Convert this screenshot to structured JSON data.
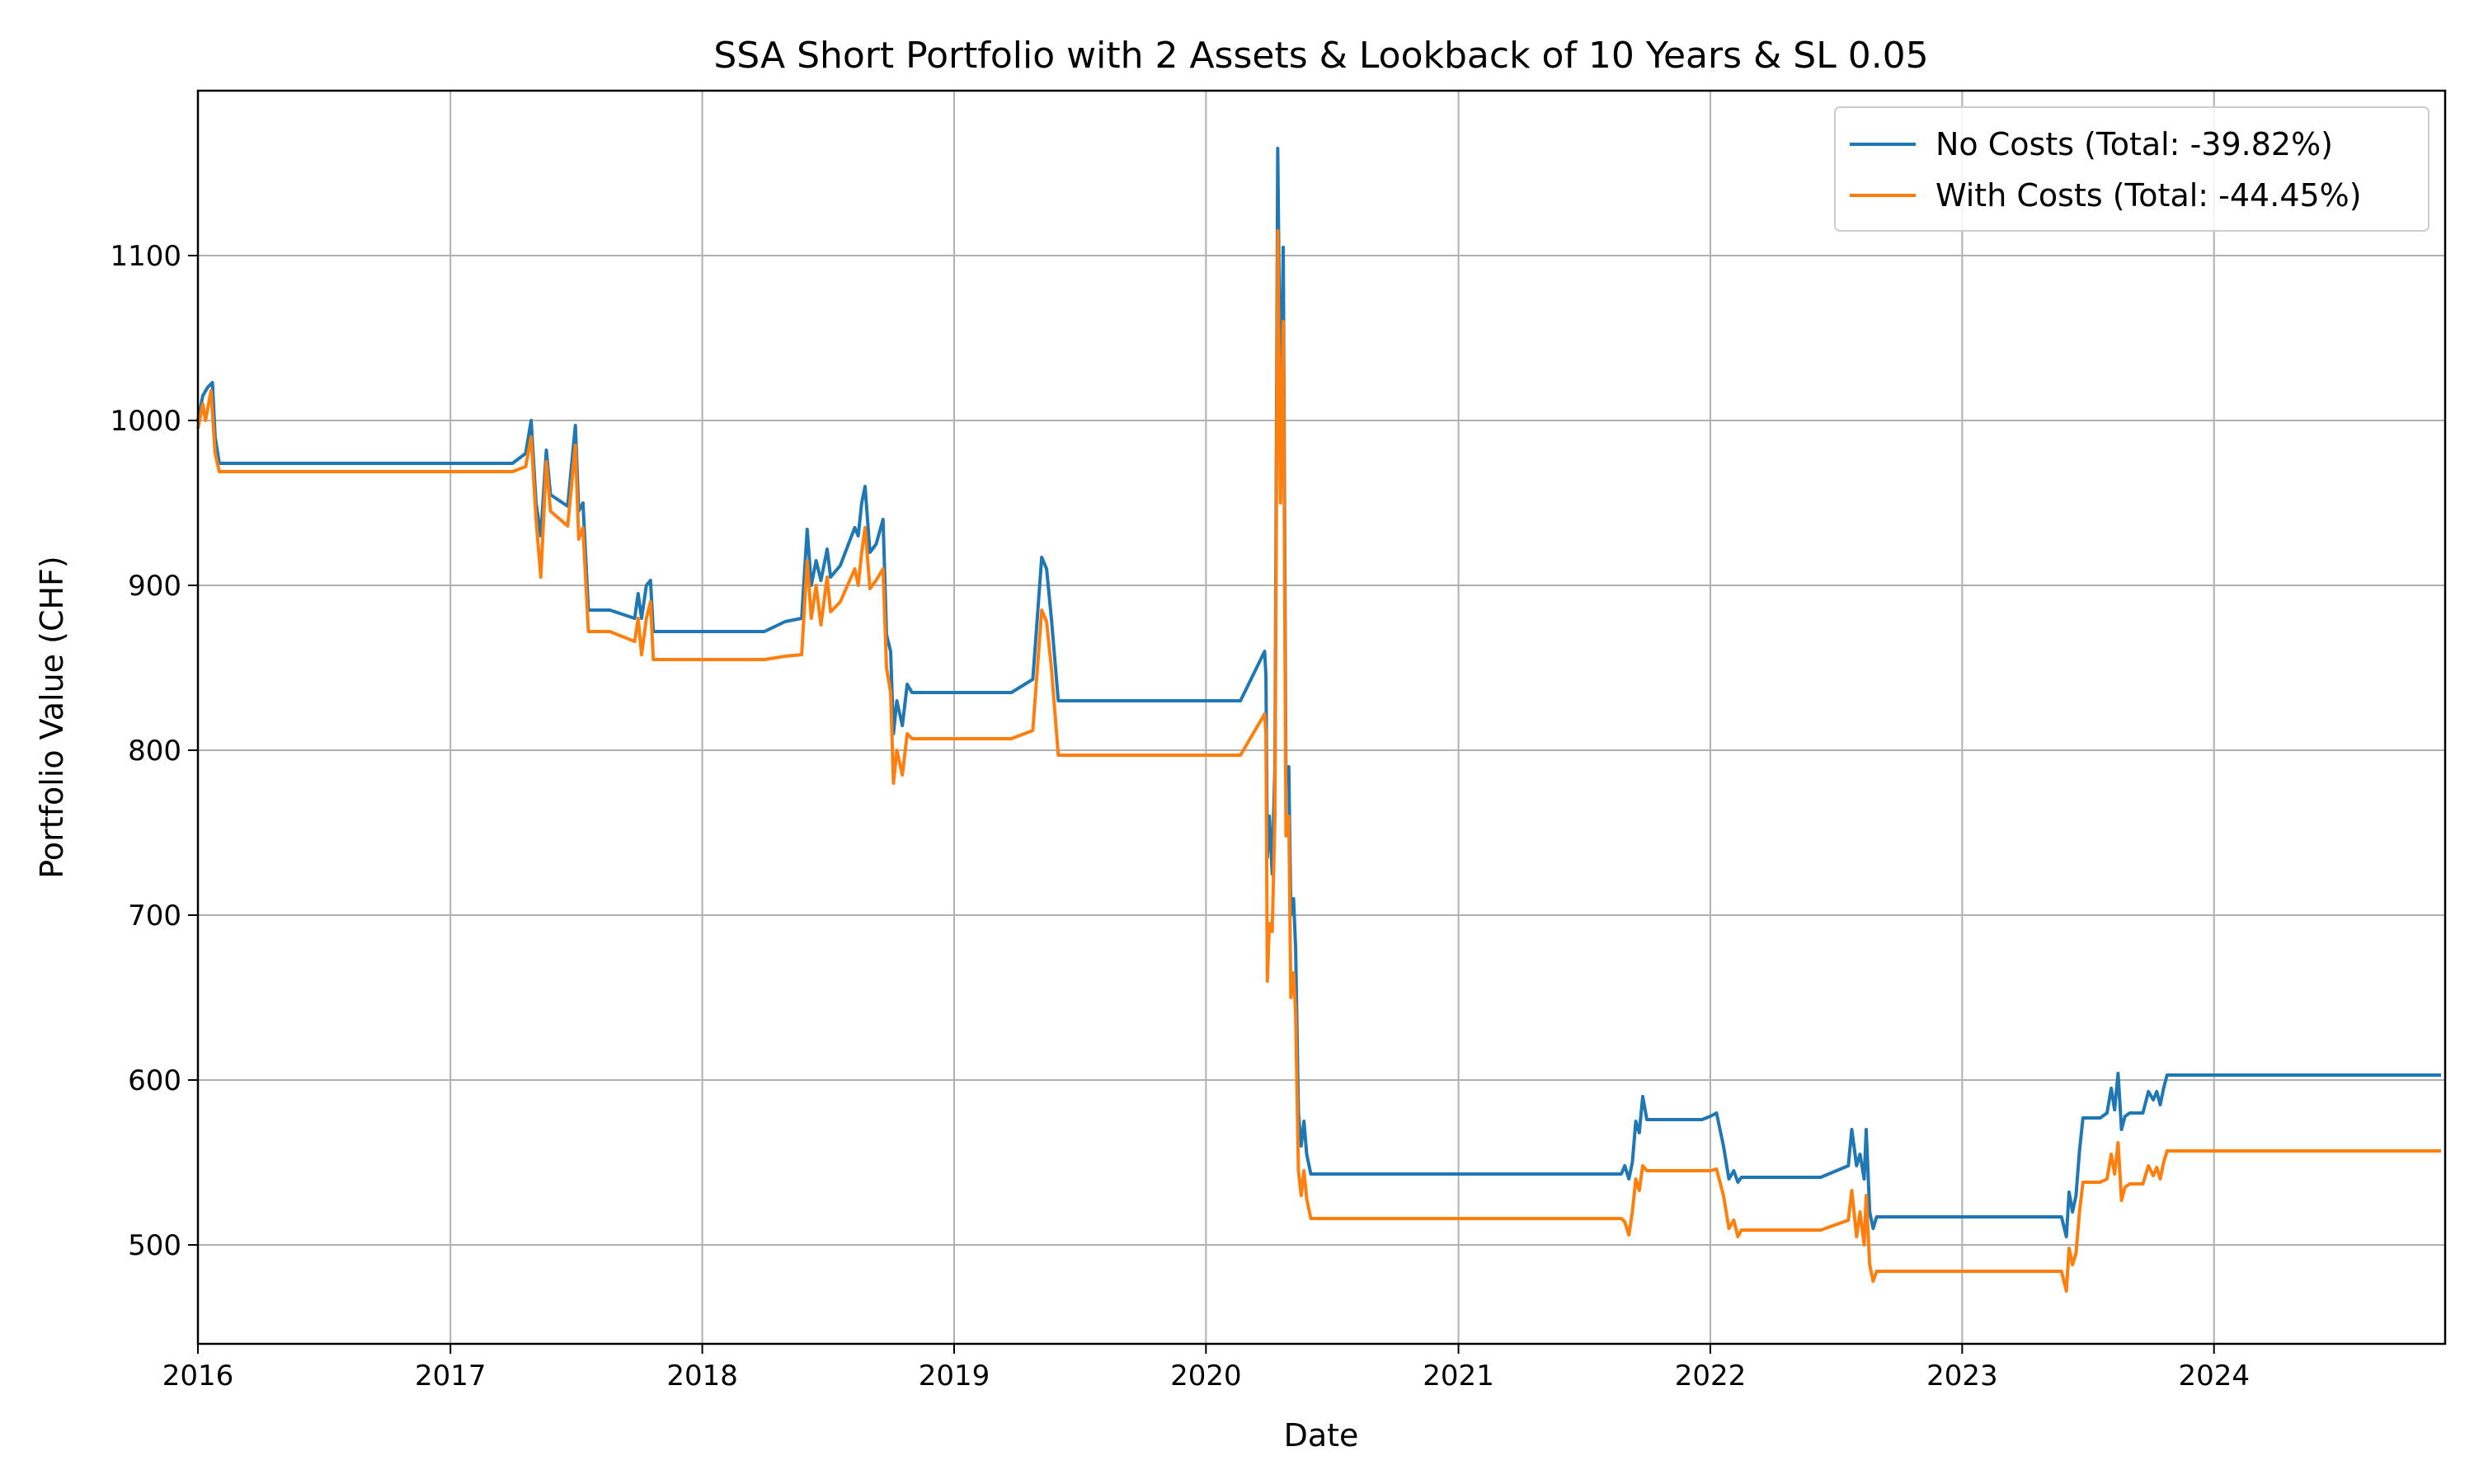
{
  "chart_data": {
    "type": "line",
    "title": "SSA Short Portfolio with 2 Assets & Lookback of 10 Years & SL 0.05",
    "xlabel": "Date",
    "ylabel": "Portfolio Value (CHF)",
    "xlim": [
      "2016-01-01",
      "2024-12-01"
    ],
    "ylim": [
      440,
      1200
    ],
    "x_ticks": [
      "2016",
      "2017",
      "2018",
      "2019",
      "2020",
      "2021",
      "2022",
      "2023",
      "2024"
    ],
    "y_ticks": [
      500,
      600,
      700,
      800,
      900,
      1000,
      1100
    ],
    "grid": true,
    "legend_position": "top-right",
    "series": [
      {
        "name": "No Costs (Total: -39.82%)",
        "color": "#1f77b4",
        "points": [
          [
            "2016-01-01",
            1000
          ],
          [
            "2016-01-08",
            1015
          ],
          [
            "2016-01-15",
            1020
          ],
          [
            "2016-01-22",
            1023
          ],
          [
            "2016-01-26",
            990
          ],
          [
            "2016-02-01",
            974
          ],
          [
            "2017-04-01",
            974
          ],
          [
            "2017-04-20",
            980
          ],
          [
            "2017-04-28",
            1000
          ],
          [
            "2017-05-05",
            950
          ],
          [
            "2017-05-12",
            930
          ],
          [
            "2017-05-20",
            982
          ],
          [
            "2017-05-26",
            955
          ],
          [
            "2017-06-20",
            948
          ],
          [
            "2017-07-01",
            997
          ],
          [
            "2017-07-06",
            945
          ],
          [
            "2017-07-12",
            950
          ],
          [
            "2017-07-20",
            885
          ],
          [
            "2017-08-20",
            885
          ],
          [
            "2017-09-25",
            880
          ],
          [
            "2017-09-30",
            895
          ],
          [
            "2017-10-05",
            880
          ],
          [
            "2017-10-12",
            900
          ],
          [
            "2017-10-18",
            903
          ],
          [
            "2017-10-22",
            872
          ],
          [
            "2018-04-01",
            872
          ],
          [
            "2018-05-01",
            878
          ],
          [
            "2018-05-25",
            880
          ],
          [
            "2018-06-02",
            934
          ],
          [
            "2018-06-08",
            900
          ],
          [
            "2018-06-15",
            915
          ],
          [
            "2018-06-22",
            903
          ],
          [
            "2018-07-01",
            922
          ],
          [
            "2018-07-06",
            905
          ],
          [
            "2018-07-20",
            912
          ],
          [
            "2018-08-10",
            935
          ],
          [
            "2018-08-15",
            930
          ],
          [
            "2018-08-20",
            950
          ],
          [
            "2018-08-25",
            960
          ],
          [
            "2018-09-01",
            920
          ],
          [
            "2018-09-10",
            925
          ],
          [
            "2018-09-20",
            940
          ],
          [
            "2018-09-25",
            870
          ],
          [
            "2018-10-01",
            860
          ],
          [
            "2018-10-05",
            810
          ],
          [
            "2018-10-10",
            830
          ],
          [
            "2018-10-18",
            815
          ],
          [
            "2018-10-25",
            840
          ],
          [
            "2018-11-01",
            835
          ],
          [
            "2019-03-25",
            835
          ],
          [
            "2019-04-25",
            843
          ],
          [
            "2019-05-08",
            917
          ],
          [
            "2019-05-15",
            910
          ],
          [
            "2019-05-22",
            880
          ],
          [
            "2019-06-01",
            830
          ],
          [
            "2020-02-20",
            830
          ],
          [
            "2020-03-26",
            860
          ],
          [
            "2020-03-28",
            845
          ],
          [
            "2020-03-30",
            735
          ],
          [
            "2020-04-02",
            760
          ],
          [
            "2020-04-06",
            725
          ],
          [
            "2020-04-10",
            790
          ],
          [
            "2020-04-14",
            1165
          ],
          [
            "2020-04-18",
            1000
          ],
          [
            "2020-04-22",
            1105
          ],
          [
            "2020-04-26",
            780
          ],
          [
            "2020-04-30",
            790
          ],
          [
            "2020-05-03",
            700
          ],
          [
            "2020-05-07",
            710
          ],
          [
            "2020-05-10",
            680
          ],
          [
            "2020-05-14",
            580
          ],
          [
            "2020-05-18",
            560
          ],
          [
            "2020-05-22",
            575
          ],
          [
            "2020-05-26",
            555
          ],
          [
            "2020-06-01",
            543
          ],
          [
            "2021-08-25",
            543
          ],
          [
            "2021-08-30",
            548
          ],
          [
            "2021-09-05",
            540
          ],
          [
            "2021-09-10",
            550
          ],
          [
            "2021-09-15",
            575
          ],
          [
            "2021-09-20",
            568
          ],
          [
            "2021-09-25",
            590
          ],
          [
            "2021-10-01",
            576
          ],
          [
            "2021-12-20",
            576
          ],
          [
            "2022-01-01",
            578
          ],
          [
            "2022-01-10",
            580
          ],
          [
            "2022-01-20",
            560
          ],
          [
            "2022-01-28",
            540
          ],
          [
            "2022-02-04",
            545
          ],
          [
            "2022-02-10",
            538
          ],
          [
            "2022-02-15",
            541
          ],
          [
            "2022-06-10",
            541
          ],
          [
            "2022-07-20",
            548
          ],
          [
            "2022-07-25",
            570
          ],
          [
            "2022-08-01",
            548
          ],
          [
            "2022-08-06",
            555
          ],
          [
            "2022-08-12",
            540
          ],
          [
            "2022-08-15",
            570
          ],
          [
            "2022-08-20",
            520
          ],
          [
            "2022-08-25",
            510
          ],
          [
            "2022-08-30",
            517
          ],
          [
            "2023-05-25",
            517
          ],
          [
            "2023-06-01",
            505
          ],
          [
            "2023-06-05",
            532
          ],
          [
            "2023-06-10",
            520
          ],
          [
            "2023-06-15",
            530
          ],
          [
            "2023-06-20",
            557
          ],
          [
            "2023-06-25",
            577
          ],
          [
            "2023-07-20",
            577
          ],
          [
            "2023-07-30",
            580
          ],
          [
            "2023-08-05",
            595
          ],
          [
            "2023-08-10",
            582
          ],
          [
            "2023-08-15",
            604
          ],
          [
            "2023-08-20",
            570
          ],
          [
            "2023-08-25",
            578
          ],
          [
            "2023-09-01",
            580
          ],
          [
            "2023-09-20",
            580
          ],
          [
            "2023-09-28",
            593
          ],
          [
            "2023-10-05",
            588
          ],
          [
            "2023-10-10",
            593
          ],
          [
            "2023-10-15",
            585
          ],
          [
            "2023-10-20",
            595
          ],
          [
            "2023-10-25",
            603
          ],
          [
            "2024-11-25",
            603
          ]
        ]
      },
      {
        "name": "With Costs (Total: -44.45%)",
        "color": "#ff7f0e",
        "points": [
          [
            "2016-01-01",
            995
          ],
          [
            "2016-01-08",
            1010
          ],
          [
            "2016-01-12",
            1000
          ],
          [
            "2016-01-20",
            1018
          ],
          [
            "2016-01-26",
            980
          ],
          [
            "2016-02-01",
            969
          ],
          [
            "2017-04-01",
            969
          ],
          [
            "2017-04-20",
            972
          ],
          [
            "2017-04-28",
            990
          ],
          [
            "2017-05-05",
            940
          ],
          [
            "2017-05-12",
            905
          ],
          [
            "2017-05-20",
            975
          ],
          [
            "2017-05-26",
            945
          ],
          [
            "2017-06-20",
            936
          ],
          [
            "2017-07-01",
            985
          ],
          [
            "2017-07-06",
            928
          ],
          [
            "2017-07-12",
            935
          ],
          [
            "2017-07-20",
            872
          ],
          [
            "2017-08-20",
            872
          ],
          [
            "2017-09-25",
            866
          ],
          [
            "2017-09-30",
            880
          ],
          [
            "2017-10-05",
            858
          ],
          [
            "2017-10-12",
            880
          ],
          [
            "2017-10-18",
            890
          ],
          [
            "2017-10-22",
            855
          ],
          [
            "2018-04-01",
            855
          ],
          [
            "2018-05-01",
            857
          ],
          [
            "2018-05-25",
            858
          ],
          [
            "2018-06-02",
            915
          ],
          [
            "2018-06-08",
            880
          ],
          [
            "2018-06-15",
            900
          ],
          [
            "2018-06-22",
            876
          ],
          [
            "2018-07-01",
            905
          ],
          [
            "2018-07-06",
            884
          ],
          [
            "2018-07-20",
            890
          ],
          [
            "2018-08-10",
            910
          ],
          [
            "2018-08-15",
            900
          ],
          [
            "2018-08-20",
            920
          ],
          [
            "2018-08-25",
            935
          ],
          [
            "2018-09-01",
            898
          ],
          [
            "2018-09-10",
            903
          ],
          [
            "2018-09-20",
            910
          ],
          [
            "2018-09-25",
            850
          ],
          [
            "2018-10-01",
            835
          ],
          [
            "2018-10-05",
            780
          ],
          [
            "2018-10-10",
            800
          ],
          [
            "2018-10-18",
            785
          ],
          [
            "2018-10-25",
            810
          ],
          [
            "2018-11-01",
            807
          ],
          [
            "2019-03-25",
            807
          ],
          [
            "2019-04-25",
            812
          ],
          [
            "2019-05-08",
            885
          ],
          [
            "2019-05-15",
            878
          ],
          [
            "2019-05-22",
            850
          ],
          [
            "2019-06-01",
            797
          ],
          [
            "2020-02-20",
            797
          ],
          [
            "2020-03-26",
            822
          ],
          [
            "2020-03-28",
            810
          ],
          [
            "2020-03-30",
            660
          ],
          [
            "2020-04-02",
            695
          ],
          [
            "2020-04-06",
            690
          ],
          [
            "2020-04-10",
            760
          ],
          [
            "2020-04-14",
            1115
          ],
          [
            "2020-04-18",
            950
          ],
          [
            "2020-04-22",
            1060
          ],
          [
            "2020-04-26",
            748
          ],
          [
            "2020-04-30",
            760
          ],
          [
            "2020-05-03",
            650
          ],
          [
            "2020-05-07",
            665
          ],
          [
            "2020-05-10",
            640
          ],
          [
            "2020-05-14",
            545
          ],
          [
            "2020-05-18",
            530
          ],
          [
            "2020-05-22",
            545
          ],
          [
            "2020-05-26",
            528
          ],
          [
            "2020-06-01",
            516
          ],
          [
            "2021-08-25",
            516
          ],
          [
            "2021-08-30",
            514
          ],
          [
            "2021-09-05",
            506
          ],
          [
            "2021-09-10",
            520
          ],
          [
            "2021-09-15",
            540
          ],
          [
            "2021-09-20",
            533
          ],
          [
            "2021-09-25",
            548
          ],
          [
            "2021-10-01",
            545
          ],
          [
            "2021-12-20",
            545
          ],
          [
            "2022-01-01",
            545
          ],
          [
            "2022-01-10",
            546
          ],
          [
            "2022-01-20",
            530
          ],
          [
            "2022-01-28",
            510
          ],
          [
            "2022-02-04",
            515
          ],
          [
            "2022-02-10",
            505
          ],
          [
            "2022-02-15",
            509
          ],
          [
            "2022-06-10",
            509
          ],
          [
            "2022-07-20",
            515
          ],
          [
            "2022-07-25",
            533
          ],
          [
            "2022-08-01",
            505
          ],
          [
            "2022-08-06",
            520
          ],
          [
            "2022-08-12",
            500
          ],
          [
            "2022-08-15",
            530
          ],
          [
            "2022-08-20",
            488
          ],
          [
            "2022-08-25",
            478
          ],
          [
            "2022-08-30",
            484
          ],
          [
            "2023-05-25",
            484
          ],
          [
            "2023-06-01",
            472
          ],
          [
            "2023-06-05",
            498
          ],
          [
            "2023-06-10",
            488
          ],
          [
            "2023-06-15",
            495
          ],
          [
            "2023-06-20",
            520
          ],
          [
            "2023-06-25",
            538
          ],
          [
            "2023-07-20",
            538
          ],
          [
            "2023-07-30",
            540
          ],
          [
            "2023-08-05",
            555
          ],
          [
            "2023-08-10",
            543
          ],
          [
            "2023-08-15",
            562
          ],
          [
            "2023-08-20",
            527
          ],
          [
            "2023-08-25",
            535
          ],
          [
            "2023-09-01",
            537
          ],
          [
            "2023-09-20",
            537
          ],
          [
            "2023-09-28",
            548
          ],
          [
            "2023-10-05",
            542
          ],
          [
            "2023-10-10",
            547
          ],
          [
            "2023-10-15",
            540
          ],
          [
            "2023-10-20",
            550
          ],
          [
            "2023-10-25",
            557
          ],
          [
            "2024-11-25",
            557
          ]
        ]
      }
    ]
  }
}
